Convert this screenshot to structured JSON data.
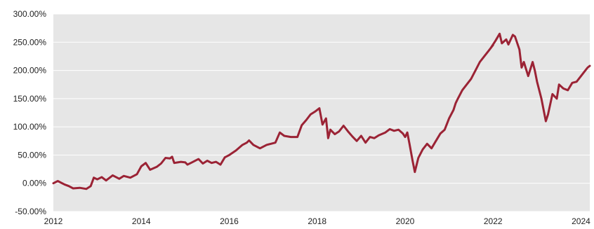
{
  "chart_data": {
    "type": "line",
    "title": "",
    "xlabel": "",
    "ylabel": "",
    "xlim": [
      2012,
      2024.2
    ],
    "ylim": [
      -50,
      300
    ],
    "x_ticks": [
      {
        "value": 2012,
        "label": "2012"
      },
      {
        "value": 2014,
        "label": "2014"
      },
      {
        "value": 2016,
        "label": "2016"
      },
      {
        "value": 2018,
        "label": "2018"
      },
      {
        "value": 2020,
        "label": "2020"
      },
      {
        "value": 2022,
        "label": "2022"
      },
      {
        "value": 2024,
        "label": "2024"
      }
    ],
    "y_ticks": [
      {
        "value": 300,
        "label": "300.00%"
      },
      {
        "value": 250,
        "label": "250.00%"
      },
      {
        "value": 200,
        "label": "200.00%"
      },
      {
        "value": 150,
        "label": "150.00%"
      },
      {
        "value": 100,
        "label": "100.00%"
      },
      {
        "value": 50,
        "label": "50.00%"
      },
      {
        "value": 0,
        "label": "0.00%"
      },
      {
        "value": -50,
        "label": "-50.00%"
      }
    ],
    "grid": true,
    "legend": "none",
    "colors": {
      "background": "#e6e6e6",
      "grid": "#ffffff",
      "line": "#9b2335"
    },
    "series": [
      {
        "values": [
          [
            2012.0,
            0
          ],
          [
            2012.1,
            4
          ],
          [
            2012.25,
            -2
          ],
          [
            2012.35,
            -5
          ],
          [
            2012.45,
            -9
          ],
          [
            2012.6,
            -8
          ],
          [
            2012.75,
            -10
          ],
          [
            2012.85,
            -5
          ],
          [
            2012.92,
            10
          ],
          [
            2013.0,
            7
          ],
          [
            2013.1,
            11
          ],
          [
            2013.2,
            5
          ],
          [
            2013.35,
            14
          ],
          [
            2013.5,
            8
          ],
          [
            2013.6,
            13
          ],
          [
            2013.75,
            10
          ],
          [
            2013.9,
            16
          ],
          [
            2014.0,
            30
          ],
          [
            2014.1,
            36
          ],
          [
            2014.2,
            24
          ],
          [
            2014.35,
            29
          ],
          [
            2014.45,
            35
          ],
          [
            2014.55,
            45
          ],
          [
            2014.65,
            44
          ],
          [
            2014.7,
            47
          ],
          [
            2014.75,
            36
          ],
          [
            2014.9,
            38
          ],
          [
            2015.0,
            37
          ],
          [
            2015.05,
            33
          ],
          [
            2015.15,
            37
          ],
          [
            2015.3,
            43
          ],
          [
            2015.4,
            35
          ],
          [
            2015.5,
            40
          ],
          [
            2015.6,
            36
          ],
          [
            2015.7,
            38
          ],
          [
            2015.8,
            33
          ],
          [
            2015.9,
            46
          ],
          [
            2016.0,
            50
          ],
          [
            2016.15,
            58
          ],
          [
            2016.3,
            68
          ],
          [
            2016.4,
            72
          ],
          [
            2016.45,
            76
          ],
          [
            2016.55,
            68
          ],
          [
            2016.7,
            62
          ],
          [
            2016.85,
            68
          ],
          [
            2016.95,
            70
          ],
          [
            2017.05,
            72
          ],
          [
            2017.15,
            90
          ],
          [
            2017.25,
            84
          ],
          [
            2017.4,
            82
          ],
          [
            2017.55,
            82
          ],
          [
            2017.65,
            103
          ],
          [
            2017.75,
            112
          ],
          [
            2017.85,
            122
          ],
          [
            2017.95,
            127
          ],
          [
            2018.05,
            133
          ],
          [
            2018.12,
            104
          ],
          [
            2018.2,
            115
          ],
          [
            2018.25,
            80
          ],
          [
            2018.3,
            95
          ],
          [
            2018.4,
            87
          ],
          [
            2018.5,
            92
          ],
          [
            2018.6,
            102
          ],
          [
            2018.7,
            92
          ],
          [
            2018.8,
            83
          ],
          [
            2018.9,
            75
          ],
          [
            2019.0,
            84
          ],
          [
            2019.1,
            72
          ],
          [
            2019.2,
            82
          ],
          [
            2019.3,
            80
          ],
          [
            2019.4,
            85
          ],
          [
            2019.55,
            90
          ],
          [
            2019.65,
            96
          ],
          [
            2019.75,
            93
          ],
          [
            2019.85,
            95
          ],
          [
            2019.95,
            88
          ],
          [
            2020.0,
            82
          ],
          [
            2020.05,
            90
          ],
          [
            2020.1,
            70
          ],
          [
            2020.17,
            40
          ],
          [
            2020.22,
            20
          ],
          [
            2020.3,
            45
          ],
          [
            2020.4,
            60
          ],
          [
            2020.5,
            70
          ],
          [
            2020.6,
            62
          ],
          [
            2020.7,
            75
          ],
          [
            2020.8,
            88
          ],
          [
            2020.9,
            95
          ],
          [
            2021.0,
            115
          ],
          [
            2021.1,
            130
          ],
          [
            2021.15,
            142
          ],
          [
            2021.2,
            150
          ],
          [
            2021.3,
            165
          ],
          [
            2021.4,
            175
          ],
          [
            2021.5,
            185
          ],
          [
            2021.6,
            200
          ],
          [
            2021.7,
            215
          ],
          [
            2021.8,
            225
          ],
          [
            2021.9,
            235
          ],
          [
            2022.0,
            245
          ],
          [
            2021.95,
            240
          ],
          [
            2022.05,
            252
          ],
          [
            2022.15,
            265
          ],
          [
            2022.2,
            248
          ],
          [
            2022.3,
            255
          ],
          [
            2022.35,
            246
          ],
          [
            2022.45,
            263
          ],
          [
            2022.5,
            260
          ],
          [
            2022.6,
            237
          ],
          [
            2022.65,
            205
          ],
          [
            2022.7,
            215
          ],
          [
            2022.8,
            190
          ],
          [
            2022.9,
            215
          ],
          [
            2022.95,
            200
          ],
          [
            2023.0,
            180
          ],
          [
            2023.1,
            150
          ],
          [
            2023.2,
            110
          ],
          [
            2023.25,
            122
          ],
          [
            2023.35,
            158
          ],
          [
            2023.45,
            150
          ],
          [
            2023.5,
            175
          ],
          [
            2023.6,
            168
          ],
          [
            2023.7,
            165
          ],
          [
            2023.8,
            178
          ],
          [
            2023.9,
            180
          ],
          [
            2024.0,
            190
          ],
          [
            2024.1,
            200
          ],
          [
            2024.15,
            205
          ],
          [
            2024.2,
            208
          ]
        ]
      }
    ]
  }
}
